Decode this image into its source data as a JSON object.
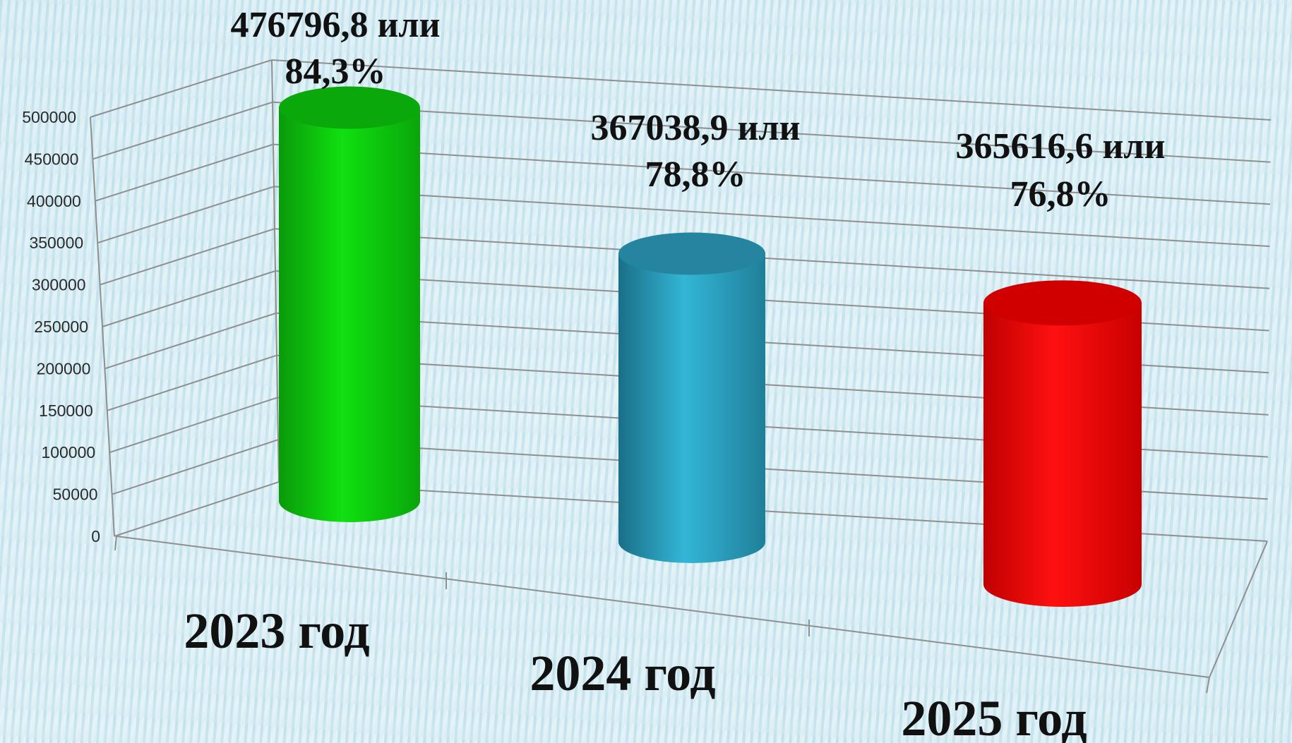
{
  "chart_data": {
    "type": "bar",
    "categories": [
      "2023 год",
      "2024 год",
      "2025 год"
    ],
    "values": [
      476796.8,
      367038.9,
      365616.6
    ],
    "data_labels": [
      [
        "476796,8 или",
        "84,3%"
      ],
      [
        "367038,9 или",
        "78,8%"
      ],
      [
        "365616,6 или",
        "76,8%"
      ]
    ],
    "colors": [
      "#0fd80f",
      "#2da9c8",
      "#ff0f0f"
    ],
    "ylim": [
      0,
      500000
    ],
    "yticks": [
      "0",
      "50000",
      "100000",
      "150000",
      "200000",
      "250000",
      "300000",
      "350000",
      "400000",
      "450000",
      "500000"
    ],
    "grid": true,
    "legend": "none",
    "style": "3d-cylinder"
  }
}
